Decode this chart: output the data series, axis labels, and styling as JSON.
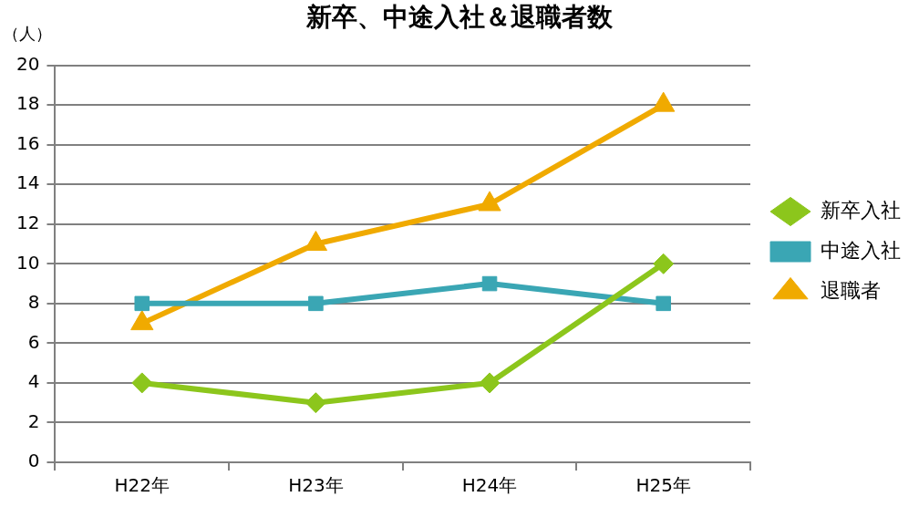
{
  "chart_data": {
    "type": "line",
    "title": "新卒、中途入社＆退職者数",
    "ylabel": "（人）",
    "categories": [
      "H22年",
      "H23年",
      "H24年",
      "H25年"
    ],
    "series": [
      {
        "name": "新卒入社",
        "color": "#8cc61c",
        "marker": "diamond",
        "values": [
          4,
          3,
          4,
          10
        ]
      },
      {
        "name": "中途入社",
        "color": "#3aa6b4",
        "marker": "square",
        "values": [
          8,
          8,
          9,
          8
        ]
      },
      {
        "name": "退職者",
        "color": "#f0aa00",
        "marker": "triangle",
        "values": [
          7,
          11,
          13,
          18
        ]
      }
    ],
    "ylim": [
      0,
      20
    ],
    "yticks": [
      0,
      2,
      4,
      6,
      8,
      10,
      12,
      14,
      16,
      18,
      20
    ],
    "grid": "y",
    "legend": "right",
    "line_style": "solid"
  }
}
